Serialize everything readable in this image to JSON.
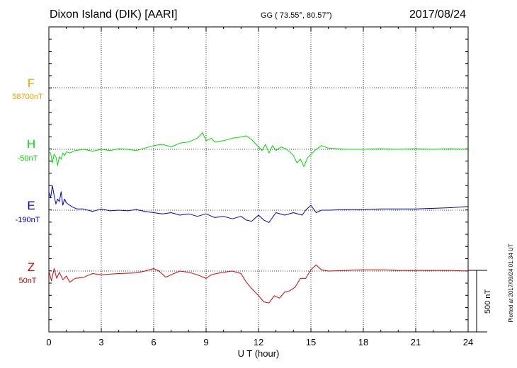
{
  "header": {
    "station": "Dixon Island (DIK)  [AARI]",
    "coords": "GG ( 73.55°,  80.57°)",
    "date": "2017/08/24"
  },
  "side_note": "Plotted at 2017/09/24 01:34 UT",
  "scale_label": "500 nT",
  "colors": {
    "F": "#f0a000",
    "H": "#00dd00",
    "E": "#0000cc",
    "Z": "#dd0000"
  },
  "components": [
    {
      "letter": "F",
      "baseline": "58700nT",
      "color": "#f0a000"
    },
    {
      "letter": "H",
      "baseline": "-50nT",
      "color": "#00dd00"
    },
    {
      "letter": "E",
      "baseline": "-190nT",
      "color": "#0000cc"
    },
    {
      "letter": "Z",
      "baseline": "50nT",
      "color": "#dd0000"
    }
  ],
  "chart_data": {
    "type": "line",
    "title": "Dixon Island (DIK)  [AARI]",
    "xlabel": "U T (hour)",
    "xlim": [
      0,
      24
    ],
    "xticks": [
      "0",
      "3",
      "6",
      "9",
      "12",
      "15",
      "18",
      "21",
      "24"
    ],
    "grid": true,
    "units": "nT",
    "scale_bar_nT": 500,
    "series": [
      {
        "name": "H",
        "baseline_nT": -50,
        "color": "#00dd00",
        "points": [
          [
            0,
            -20
          ],
          [
            0.1,
            -30
          ],
          [
            0.2,
            -110
          ],
          [
            0.3,
            -40
          ],
          [
            0.4,
            -60
          ],
          [
            0.5,
            -130
          ],
          [
            0.6,
            -60
          ],
          [
            0.7,
            -80
          ],
          [
            0.8,
            -30
          ],
          [
            0.9,
            -50
          ],
          [
            1.0,
            -20
          ],
          [
            1.2,
            -30
          ],
          [
            1.5,
            -10
          ],
          [
            2,
            0
          ],
          [
            2.5,
            -15
          ],
          [
            3,
            0
          ],
          [
            3.5,
            -10
          ],
          [
            4,
            5
          ],
          [
            4.5,
            0
          ],
          [
            5,
            -10
          ],
          [
            5.5,
            10
          ],
          [
            6,
            30
          ],
          [
            6.5,
            40
          ],
          [
            7,
            20
          ],
          [
            7.5,
            50
          ],
          [
            8,
            60
          ],
          [
            8.5,
            90
          ],
          [
            8.8,
            135
          ],
          [
            9,
            70
          ],
          [
            9.3,
            90
          ],
          [
            9.5,
            60
          ],
          [
            10,
            70
          ],
          [
            10.5,
            90
          ],
          [
            11,
            100
          ],
          [
            11.3,
            110
          ],
          [
            11.6,
            80
          ],
          [
            12,
            20
          ],
          [
            12.2,
            -10
          ],
          [
            12.4,
            40
          ],
          [
            12.6,
            -30
          ],
          [
            12.8,
            30
          ],
          [
            13,
            -10
          ],
          [
            13.3,
            20
          ],
          [
            13.6,
            0
          ],
          [
            13.8,
            -20
          ],
          [
            14,
            -50
          ],
          [
            14.2,
            -110
          ],
          [
            14.4,
            -80
          ],
          [
            14.6,
            -140
          ],
          [
            14.8,
            -70
          ],
          [
            15,
            -40
          ],
          [
            15.3,
            0
          ],
          [
            15.6,
            30
          ],
          [
            16,
            10
          ],
          [
            17,
            0
          ],
          [
            18,
            0
          ],
          [
            19,
            5
          ],
          [
            20,
            0
          ],
          [
            21,
            5
          ],
          [
            22,
            0
          ],
          [
            23,
            5
          ],
          [
            24,
            0
          ]
        ]
      },
      {
        "name": "E",
        "baseline_nT": -190,
        "color": "#0000cc",
        "points": [
          [
            0,
            150
          ],
          [
            0.1,
            100
          ],
          [
            0.2,
            200
          ],
          [
            0.3,
            120
          ],
          [
            0.4,
            50
          ],
          [
            0.5,
            90
          ],
          [
            0.6,
            70
          ],
          [
            0.7,
            150
          ],
          [
            0.8,
            40
          ],
          [
            0.9,
            90
          ],
          [
            1.0,
            60
          ],
          [
            1.3,
            30
          ],
          [
            1.6,
            10
          ],
          [
            2,
            10
          ],
          [
            2.5,
            -10
          ],
          [
            3,
            10
          ],
          [
            3.5,
            -5
          ],
          [
            4,
            0
          ],
          [
            4.5,
            -5
          ],
          [
            5,
            5
          ],
          [
            5.5,
            -10
          ],
          [
            6,
            -20
          ],
          [
            6.5,
            -30
          ],
          [
            7,
            -20
          ],
          [
            7.5,
            -40
          ],
          [
            8,
            -30
          ],
          [
            8.5,
            -50
          ],
          [
            9,
            -30
          ],
          [
            9.5,
            -60
          ],
          [
            10,
            -50
          ],
          [
            10.5,
            -70
          ],
          [
            11,
            -50
          ],
          [
            11.3,
            -80
          ],
          [
            11.6,
            -90
          ],
          [
            12,
            -40
          ],
          [
            12.3,
            -80
          ],
          [
            12.6,
            -100
          ],
          [
            12.8,
            -60
          ],
          [
            13,
            -20
          ],
          [
            13.5,
            -40
          ],
          [
            14,
            -20
          ],
          [
            14.5,
            -40
          ],
          [
            14.7,
            0
          ],
          [
            15,
            40
          ],
          [
            15.3,
            -20
          ],
          [
            15.6,
            0
          ],
          [
            16,
            0
          ],
          [
            17,
            5
          ],
          [
            18,
            5
          ],
          [
            19,
            10
          ],
          [
            20,
            10
          ],
          [
            21,
            10
          ],
          [
            22,
            15
          ],
          [
            23,
            20
          ],
          [
            24,
            30
          ]
        ]
      },
      {
        "name": "Z",
        "baseline_nT": 50,
        "color": "#dd0000",
        "points": [
          [
            0,
            0
          ],
          [
            0.15,
            -80
          ],
          [
            0.3,
            20
          ],
          [
            0.45,
            -60
          ],
          [
            0.6,
            -10
          ],
          [
            0.8,
            -70
          ],
          [
            1.0,
            -40
          ],
          [
            1.2,
            -90
          ],
          [
            1.5,
            -60
          ],
          [
            2,
            -50
          ],
          [
            2.5,
            -20
          ],
          [
            3,
            -30
          ],
          [
            4,
            -20
          ],
          [
            5,
            -15
          ],
          [
            5.5,
            0
          ],
          [
            6,
            20
          ],
          [
            6.3,
            0
          ],
          [
            6.7,
            -50
          ],
          [
            7,
            -30
          ],
          [
            7.5,
            0
          ],
          [
            8,
            -10
          ],
          [
            8.5,
            -30
          ],
          [
            9,
            -60
          ],
          [
            9.3,
            -30
          ],
          [
            9.6,
            -20
          ],
          [
            10,
            -10
          ],
          [
            10.5,
            0
          ],
          [
            11,
            -20
          ],
          [
            11.3,
            -90
          ],
          [
            11.6,
            -140
          ],
          [
            12,
            -200
          ],
          [
            12.3,
            -250
          ],
          [
            12.6,
            -260
          ],
          [
            12.9,
            -200
          ],
          [
            13.2,
            -220
          ],
          [
            13.5,
            -170
          ],
          [
            13.8,
            -160
          ],
          [
            14.1,
            -130
          ],
          [
            14.4,
            -60
          ],
          [
            14.7,
            -60
          ],
          [
            15,
            10
          ],
          [
            15.3,
            50
          ],
          [
            15.6,
            10
          ],
          [
            16,
            0
          ],
          [
            17,
            5
          ],
          [
            18,
            10
          ],
          [
            19,
            10
          ],
          [
            20,
            5
          ],
          [
            21,
            5
          ],
          [
            22,
            5
          ],
          [
            23,
            5
          ],
          [
            24,
            0
          ]
        ]
      }
    ]
  }
}
